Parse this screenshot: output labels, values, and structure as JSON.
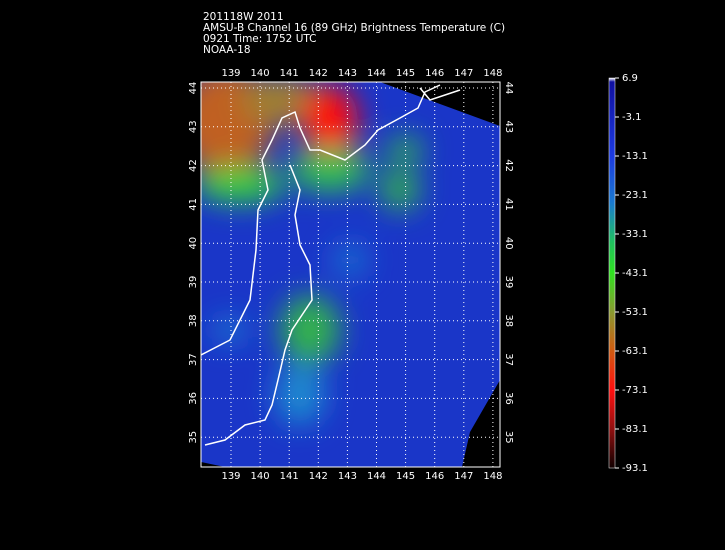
{
  "header": {
    "lines": [
      "201118W 2011",
      "AMSU-B Channel 16 (89 GHz) Brightness Temperature (C)",
      "0921 Time: 1752 UTC",
      "NOAA-18"
    ]
  },
  "map": {
    "lon_ticks": [
      139,
      140,
      141,
      142,
      143,
      144,
      145,
      146,
      147,
      148
    ],
    "lat_ticks": [
      35,
      36,
      37,
      38,
      39,
      40,
      41,
      42,
      43,
      44
    ]
  },
  "colorbar": {
    "range": [
      -93.1,
      6.9
    ],
    "ticks": [
      6.9,
      -3.1,
      -13.1,
      -23.1,
      -33.1,
      -43.1,
      -53.1,
      -63.1,
      -73.1,
      -83.1,
      -93.1
    ]
  }
}
